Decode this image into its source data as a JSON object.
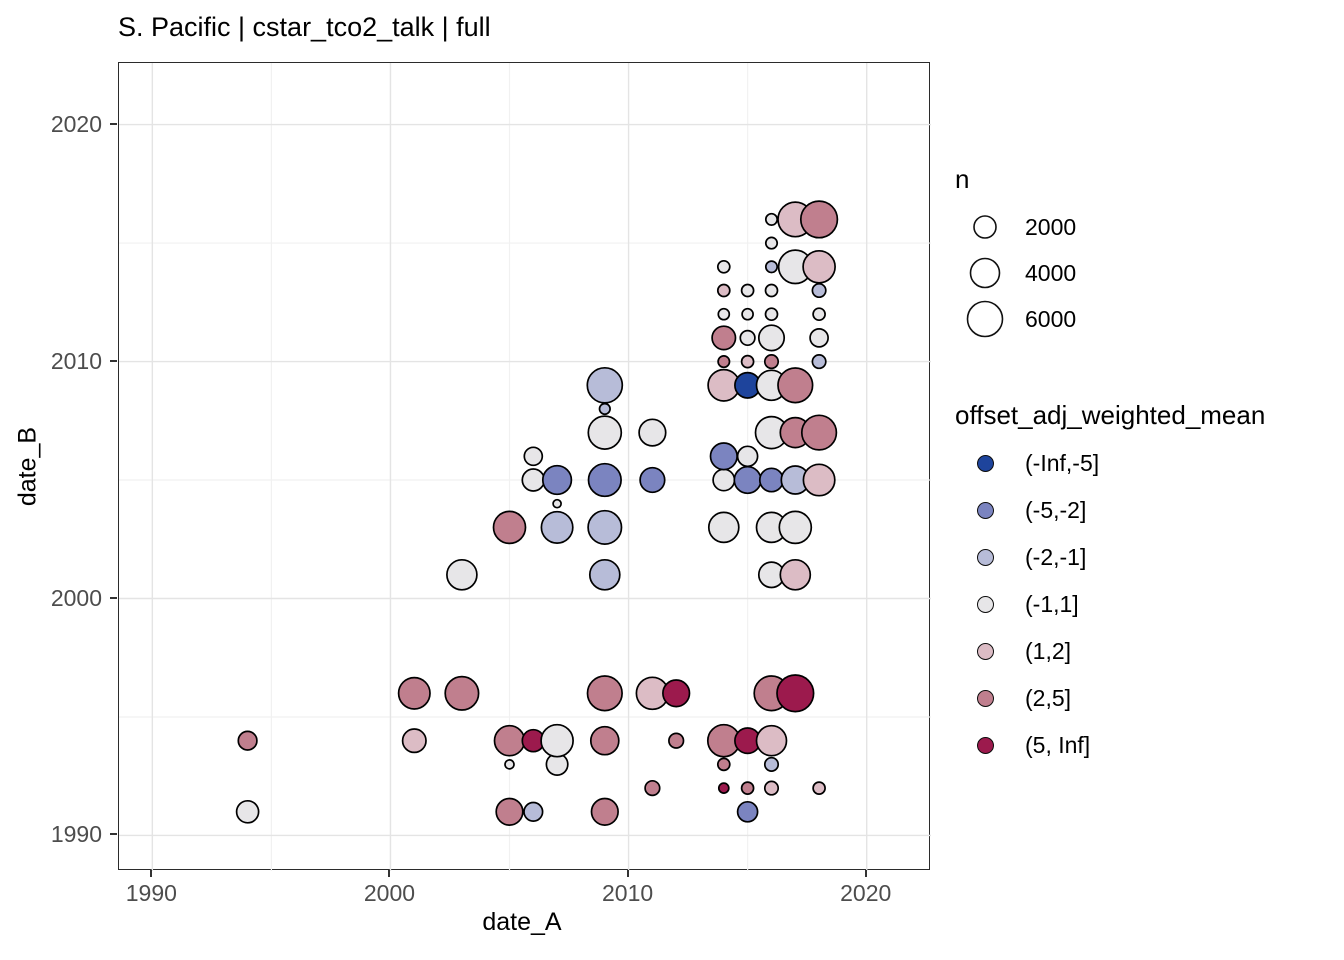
{
  "title": "S. Pacific | cstar_tco2_talk | full",
  "chart_data": {
    "type": "scatter",
    "title": "S. Pacific | cstar_tco2_talk | full",
    "xlabel": "date_A",
    "ylabel": "date_B",
    "xlim": [
      1988.6,
      2022.7
    ],
    "ylim": [
      1988.5,
      2022.6
    ],
    "x_ticks": [
      1990,
      2000,
      2010,
      2020
    ],
    "y_ticks": [
      1990,
      2000,
      2010,
      2020
    ],
    "x_minor_ticks": [
      1995,
      2005,
      2015
    ],
    "y_minor_ticks": [
      1995,
      2005,
      2015
    ],
    "grid": true,
    "legend_position": "right",
    "point_outline": "#000000",
    "size_legend": {
      "title": "n",
      "entries": [
        {
          "n": "2000",
          "r": 11
        },
        {
          "n": "4000",
          "r": 14.5
        },
        {
          "n": "6000",
          "r": 17.5
        }
      ]
    },
    "color_legend": {
      "title": "offset_adj_weighted_mean",
      "entries": [
        {
          "label": "(-Inf,-5]",
          "color": "#1e449c"
        },
        {
          "label": "(-5,-2]",
          "color": "#7b84c0"
        },
        {
          "label": "(-2,-1]",
          "color": "#b7bcd8"
        },
        {
          "label": "(-1,1]",
          "color": "#e7e6e8"
        },
        {
          "label": "(1,2]",
          "color": "#dcbcc5"
        },
        {
          "label": "(2,5]",
          "color": "#c07f8e"
        },
        {
          "label": "(5, Inf]",
          "color": "#9c1a4d"
        }
      ]
    },
    "point_format": {
      "x": "date_A year",
      "y": "date_B year",
      "r": "bubble radius px (n scale)",
      "bin": "offset_adj_weighted_mean bin"
    },
    "points": [
      {
        "x": 1994,
        "y": 1991,
        "r": 11,
        "bin": "(-1,1]"
      },
      {
        "x": 2005,
        "y": 1991,
        "r": 13.3,
        "bin": "(2,5]"
      },
      {
        "x": 2006,
        "y": 1991,
        "r": 9.3,
        "bin": "(-2,-1]"
      },
      {
        "x": 2009,
        "y": 1991,
        "r": 13.3,
        "bin": "(2,5]"
      },
      {
        "x": 2015,
        "y": 1991,
        "r": 10,
        "bin": "(-5,-2]"
      },
      {
        "x": 2011,
        "y": 1992,
        "r": 7.3,
        "bin": "(2,5]"
      },
      {
        "x": 2014,
        "y": 1992,
        "r": 5,
        "bin": "(5, Inf]"
      },
      {
        "x": 2015,
        "y": 1992,
        "r": 6,
        "bin": "(2,5]"
      },
      {
        "x": 2016,
        "y": 1992,
        "r": 6.7,
        "bin": "(1,2]"
      },
      {
        "x": 2018,
        "y": 1992,
        "r": 6,
        "bin": "(1,2]"
      },
      {
        "x": 2005,
        "y": 1993,
        "r": 4.5,
        "bin": "(-1,1]"
      },
      {
        "x": 2007,
        "y": 1993,
        "r": 10.7,
        "bin": "(-1,1]"
      },
      {
        "x": 2014,
        "y": 1993,
        "r": 6,
        "bin": "(2,5]"
      },
      {
        "x": 2016,
        "y": 1993,
        "r": 6.7,
        "bin": "(-2,-1]"
      },
      {
        "x": 1994,
        "y": 1994,
        "r": 9.3,
        "bin": "(2,5]"
      },
      {
        "x": 2001,
        "y": 1994,
        "r": 11.7,
        "bin": "(1,2]"
      },
      {
        "x": 2005,
        "y": 1994,
        "r": 15,
        "bin": "(2,5]"
      },
      {
        "x": 2006,
        "y": 1994,
        "r": 11,
        "bin": "(5, Inf]"
      },
      {
        "x": 2007,
        "y": 1994,
        "r": 16,
        "bin": "(-1,1]"
      },
      {
        "x": 2009,
        "y": 1994,
        "r": 14,
        "bin": "(2,5]"
      },
      {
        "x": 2012,
        "y": 1994,
        "r": 7.3,
        "bin": "(2,5]"
      },
      {
        "x": 2014,
        "y": 1994,
        "r": 16,
        "bin": "(2,5]"
      },
      {
        "x": 2015,
        "y": 1994,
        "r": 12.7,
        "bin": "(5, Inf]"
      },
      {
        "x": 2016,
        "y": 1994,
        "r": 15,
        "bin": "(1,2]"
      },
      {
        "x": 2001,
        "y": 1996,
        "r": 15.7,
        "bin": "(2,5]"
      },
      {
        "x": 2003,
        "y": 1996,
        "r": 16.7,
        "bin": "(2,5]"
      },
      {
        "x": 2009,
        "y": 1996,
        "r": 17.3,
        "bin": "(2,5]"
      },
      {
        "x": 2011,
        "y": 1996,
        "r": 16,
        "bin": "(1,2]"
      },
      {
        "x": 2012,
        "y": 1996,
        "r": 13.3,
        "bin": "(5, Inf]"
      },
      {
        "x": 2016,
        "y": 1996,
        "r": 17.3,
        "bin": "(2,5]"
      },
      {
        "x": 2017,
        "y": 1996,
        "r": 18.3,
        "bin": "(5, Inf]"
      },
      {
        "x": 2003,
        "y": 2001,
        "r": 15,
        "bin": "(-1,1]"
      },
      {
        "x": 2009,
        "y": 2001,
        "r": 15,
        "bin": "(-2,-1]"
      },
      {
        "x": 2016,
        "y": 2001,
        "r": 12.7,
        "bin": "(-1,1]"
      },
      {
        "x": 2017,
        "y": 2001,
        "r": 15,
        "bin": "(1,2]"
      },
      {
        "x": 2005,
        "y": 2003,
        "r": 16,
        "bin": "(2,5]"
      },
      {
        "x": 2007,
        "y": 2003,
        "r": 15.7,
        "bin": "(-2,-1]"
      },
      {
        "x": 2009,
        "y": 2003,
        "r": 16.7,
        "bin": "(-2,-1]"
      },
      {
        "x": 2014,
        "y": 2003,
        "r": 15,
        "bin": "(-1,1]"
      },
      {
        "x": 2016,
        "y": 2003,
        "r": 15,
        "bin": "(-1,1]"
      },
      {
        "x": 2017,
        "y": 2003,
        "r": 16,
        "bin": "(-1,1]"
      },
      {
        "x": 2007,
        "y": 2004,
        "r": 4,
        "bin": "(-1,1]"
      },
      {
        "x": 2006,
        "y": 2005,
        "r": 11,
        "bin": "(-1,1]"
      },
      {
        "x": 2007,
        "y": 2005,
        "r": 14.3,
        "bin": "(-5,-2]"
      },
      {
        "x": 2009,
        "y": 2005,
        "r": 16.3,
        "bin": "(-5,-2]"
      },
      {
        "x": 2011,
        "y": 2005,
        "r": 12.3,
        "bin": "(-5,-2]"
      },
      {
        "x": 2014,
        "y": 2005,
        "r": 10.7,
        "bin": "(-1,1]"
      },
      {
        "x": 2015,
        "y": 2005,
        "r": 13.3,
        "bin": "(-5,-2]"
      },
      {
        "x": 2016,
        "y": 2005,
        "r": 11.7,
        "bin": "(-5,-2]"
      },
      {
        "x": 2017,
        "y": 2005,
        "r": 14,
        "bin": "(-2,-1]"
      },
      {
        "x": 2018,
        "y": 2005,
        "r": 15.7,
        "bin": "(1,2]"
      },
      {
        "x": 2006,
        "y": 2006,
        "r": 9,
        "bin": "(-1,1]"
      },
      {
        "x": 2014,
        "y": 2006,
        "r": 13.3,
        "bin": "(-5,-2]"
      },
      {
        "x": 2015,
        "y": 2006,
        "r": 10,
        "bin": "(-1,1]"
      },
      {
        "x": 2009,
        "y": 2007,
        "r": 16.5,
        "bin": "(-1,1]"
      },
      {
        "x": 2011,
        "y": 2007,
        "r": 13.3,
        "bin": "(-1,1]"
      },
      {
        "x": 2016,
        "y": 2007,
        "r": 16,
        "bin": "(-1,1]"
      },
      {
        "x": 2017,
        "y": 2007,
        "r": 15,
        "bin": "(2,5]"
      },
      {
        "x": 2018,
        "y": 2007,
        "r": 17.3,
        "bin": "(2,5]"
      },
      {
        "x": 2009,
        "y": 2008,
        "r": 5.3,
        "bin": "(-2,-1]"
      },
      {
        "x": 2009,
        "y": 2009,
        "r": 17.5,
        "bin": "(-2,-1]"
      },
      {
        "x": 2014,
        "y": 2009,
        "r": 15.7,
        "bin": "(1,2]"
      },
      {
        "x": 2015,
        "y": 2009,
        "r": 12.7,
        "bin": "(-Inf,-5]"
      },
      {
        "x": 2016,
        "y": 2009,
        "r": 15,
        "bin": "(-1,1]"
      },
      {
        "x": 2017,
        "y": 2009,
        "r": 17.3,
        "bin": "(2,5]"
      },
      {
        "x": 2014,
        "y": 2010,
        "r": 5.7,
        "bin": "(2,5]"
      },
      {
        "x": 2015,
        "y": 2010,
        "r": 6,
        "bin": "(1,2]"
      },
      {
        "x": 2016,
        "y": 2010,
        "r": 6.7,
        "bin": "(2,5]"
      },
      {
        "x": 2018,
        "y": 2010,
        "r": 6.7,
        "bin": "(-2,-1]"
      },
      {
        "x": 2014,
        "y": 2011,
        "r": 11.7,
        "bin": "(2,5]"
      },
      {
        "x": 2015,
        "y": 2011,
        "r": 7.3,
        "bin": "(-1,1]"
      },
      {
        "x": 2016,
        "y": 2011,
        "r": 12.7,
        "bin": "(-1,1]"
      },
      {
        "x": 2018,
        "y": 2011,
        "r": 9,
        "bin": "(-1,1]"
      },
      {
        "x": 2014,
        "y": 2012,
        "r": 5.5,
        "bin": "(-1,1]"
      },
      {
        "x": 2015,
        "y": 2012,
        "r": 5.5,
        "bin": "(-1,1]"
      },
      {
        "x": 2016,
        "y": 2012,
        "r": 6,
        "bin": "(-1,1]"
      },
      {
        "x": 2018,
        "y": 2012,
        "r": 6,
        "bin": "(-1,1]"
      },
      {
        "x": 2014,
        "y": 2013,
        "r": 6,
        "bin": "(1,2]"
      },
      {
        "x": 2015,
        "y": 2013,
        "r": 6,
        "bin": "(-1,1]"
      },
      {
        "x": 2016,
        "y": 2013,
        "r": 6,
        "bin": "(-1,1]"
      },
      {
        "x": 2018,
        "y": 2013,
        "r": 6.7,
        "bin": "(-2,-1]"
      },
      {
        "x": 2014,
        "y": 2014,
        "r": 6,
        "bin": "(-1,1]"
      },
      {
        "x": 2016,
        "y": 2014,
        "r": 5.7,
        "bin": "(-2,-1]"
      },
      {
        "x": 2017,
        "y": 2014,
        "r": 16.7,
        "bin": "(-1,1]"
      },
      {
        "x": 2018,
        "y": 2014,
        "r": 16,
        "bin": "(1,2]"
      },
      {
        "x": 2016,
        "y": 2015,
        "r": 5.7,
        "bin": "(-1,1]"
      },
      {
        "x": 2016,
        "y": 2016,
        "r": 5.7,
        "bin": "(-1,1]"
      },
      {
        "x": 2017,
        "y": 2016,
        "r": 17.3,
        "bin": "(1,2]"
      },
      {
        "x": 2018,
        "y": 2016,
        "r": 18.3,
        "bin": "(2,5]"
      }
    ]
  }
}
